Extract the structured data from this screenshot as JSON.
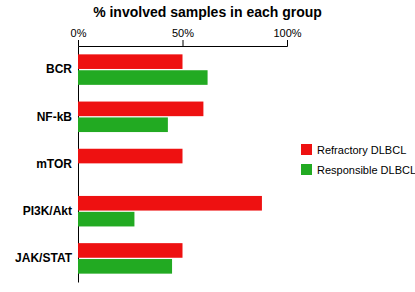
{
  "chart_data": {
    "type": "bar",
    "orientation": "horizontal",
    "title": "% involved samples in each group",
    "categories": [
      "BCR",
      "NF-kB",
      "mTOR",
      "PI3K/Akt",
      "JAK/STAT"
    ],
    "series": [
      {
        "name": "Refractory DLBCL",
        "color": "#ee1111",
        "values": [
          50,
          60,
          50,
          88,
          50
        ]
      },
      {
        "name": "Responsible DLBCL",
        "color": "#22aa22",
        "values": [
          62,
          43,
          0,
          27,
          45
        ]
      }
    ],
    "xlim": [
      0,
      100
    ],
    "xticks": [
      {
        "value": 0,
        "label": "0%"
      },
      {
        "value": 50,
        "label": "50%"
      },
      {
        "value": 100,
        "label": "100%"
      }
    ],
    "legend": "right"
  }
}
